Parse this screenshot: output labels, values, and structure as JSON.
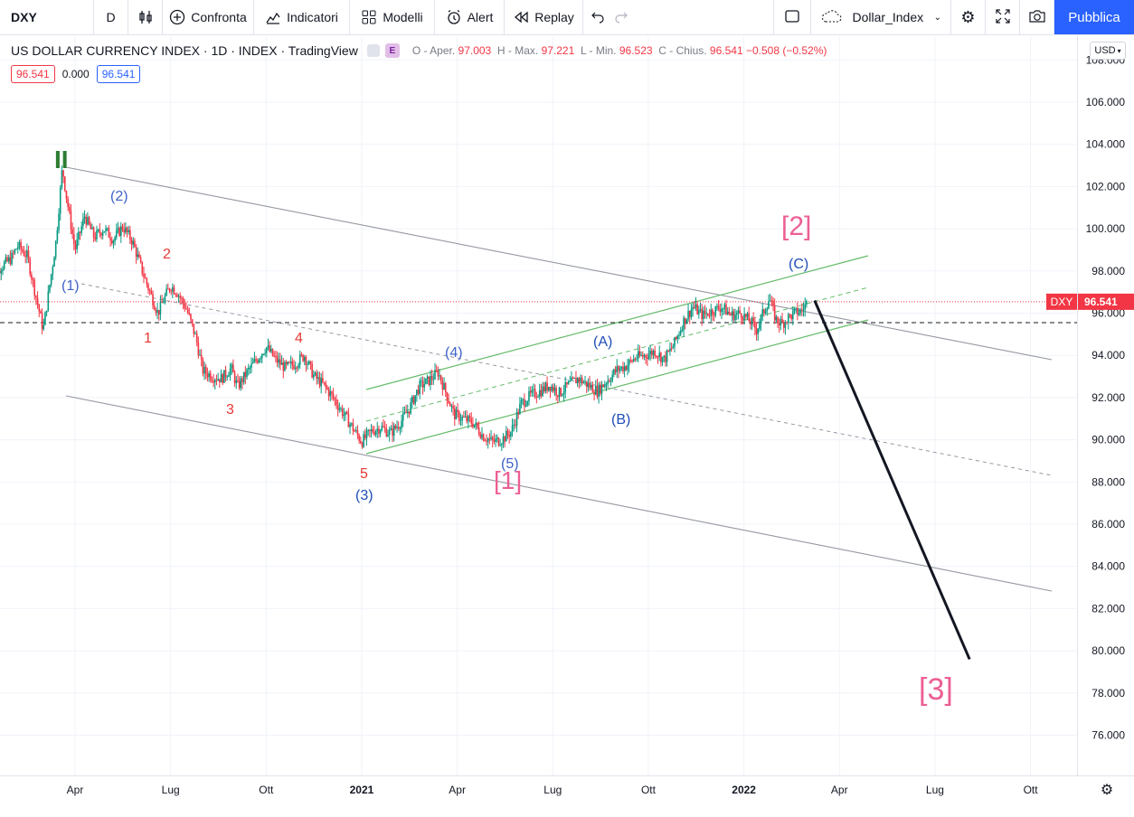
{
  "toolbar": {
    "symbol": "DXY",
    "interval": "D",
    "compare_label": "Confronta",
    "indicators_label": "Indicatori",
    "templates_label": "Modelli",
    "alert_label": "Alert",
    "replay_label": "Replay",
    "layout_name": "Dollar_Index",
    "publish_label": "Pubblica"
  },
  "legend": {
    "title": "US DOLLAR CURRENCY INDEX · 1D · INDEX · TradingView",
    "e_badge": "E",
    "open_label": "O - Aper.",
    "open": "97.003",
    "high_label": "H - Max.",
    "high": "97.221",
    "low_label": "L - Min.",
    "low": "96.523",
    "close_label": "C - Chius.",
    "close": "96.541",
    "change": "−0.508 (−0.52%)",
    "price_box_1": "96.541",
    "price_box_mid": "0.000",
    "price_box_2": "96.541"
  },
  "currency_selector": "USD",
  "colors": {
    "up": "#089981",
    "down": "#f23645",
    "wave_red": "#e53935",
    "wave_blue": "#1e4db7",
    "wave_pink": "#ec5f94",
    "wave_green": "#2e7d32",
    "channel_green": "#66bb6a",
    "channel_gray": "#9598a1",
    "accent": "#2962ff"
  },
  "chart_data": {
    "type": "line",
    "symbol": "DXY",
    "ylim": [
      74.5,
      108.5
    ],
    "y_ticks": [
      76,
      78,
      80,
      82,
      84,
      86,
      88,
      90,
      92,
      94,
      96,
      98,
      100,
      102,
      104,
      106,
      108
    ],
    "x_ticks": [
      "Apr",
      "Lug",
      "Ott",
      "2021",
      "Apr",
      "Lug",
      "Ott",
      "2022",
      "Apr",
      "Lug",
      "Ott"
    ],
    "x_tick_months": [
      3,
      6,
      9,
      12,
      15,
      18,
      21,
      24,
      27,
      30,
      33
    ],
    "x_range_months": [
      0.25,
      34.7
    ],
    "series": [
      {
        "values": [
          [
            0.3,
            97.6
          ],
          [
            0.6,
            98.1
          ],
          [
            1.0,
            98.6
          ],
          [
            1.2,
            99.2
          ],
          [
            1.5,
            98.7
          ],
          [
            1.8,
            96.6
          ],
          [
            2.0,
            95.2
          ],
          [
            2.2,
            97.3
          ],
          [
            2.4,
            99.4
          ],
          [
            2.6,
            102.9
          ],
          [
            2.75,
            101.3
          ],
          [
            3.0,
            99.0
          ],
          [
            3.3,
            100.6
          ],
          [
            3.6,
            99.6
          ],
          [
            3.9,
            100.0
          ],
          [
            4.2,
            99.5
          ],
          [
            4.5,
            100.1
          ],
          [
            4.8,
            99.4
          ],
          [
            5.0,
            98.5
          ],
          [
            5.2,
            97.6
          ],
          [
            5.4,
            96.8
          ],
          [
            5.6,
            96.0
          ],
          [
            5.8,
            96.7
          ],
          [
            6.0,
            97.3
          ],
          [
            6.2,
            97.0
          ],
          [
            6.5,
            96.2
          ],
          [
            6.8,
            94.8
          ],
          [
            7.0,
            93.3
          ],
          [
            7.3,
            93.0
          ],
          [
            7.6,
            92.9
          ],
          [
            7.9,
            93.4
          ],
          [
            8.1,
            92.5
          ],
          [
            8.4,
            93.2
          ],
          [
            8.7,
            93.8
          ],
          [
            9.0,
            94.4
          ],
          [
            9.3,
            93.8
          ],
          [
            9.6,
            93.4
          ],
          [
            9.9,
            93.6
          ],
          [
            10.2,
            94.0
          ],
          [
            10.5,
            93.0
          ],
          [
            10.8,
            92.6
          ],
          [
            11.1,
            92.0
          ],
          [
            11.4,
            91.3
          ],
          [
            11.7,
            90.6
          ],
          [
            12.0,
            89.9
          ],
          [
            12.3,
            90.4
          ],
          [
            12.6,
            90.6
          ],
          [
            12.9,
            90.3
          ],
          [
            13.2,
            90.8
          ],
          [
            13.5,
            91.5
          ],
          [
            13.8,
            92.5
          ],
          [
            14.1,
            92.8
          ],
          [
            14.4,
            93.2
          ],
          [
            14.6,
            92.4
          ],
          [
            14.9,
            91.2
          ],
          [
            15.2,
            91.0
          ],
          [
            15.5,
            90.8
          ],
          [
            15.8,
            90.2
          ],
          [
            16.1,
            89.9
          ],
          [
            16.4,
            90.0
          ],
          [
            16.7,
            90.4
          ],
          [
            17.0,
            91.7
          ],
          [
            17.3,
            92.1
          ],
          [
            17.6,
            92.3
          ],
          [
            17.9,
            92.6
          ],
          [
            18.2,
            92.2
          ],
          [
            18.5,
            92.6
          ],
          [
            18.8,
            92.9
          ],
          [
            19.1,
            92.6
          ],
          [
            19.4,
            92.3
          ],
          [
            19.7,
            92.8
          ],
          [
            20.0,
            93.3
          ],
          [
            20.3,
            93.5
          ],
          [
            20.6,
            93.9
          ],
          [
            20.9,
            94.0
          ],
          [
            21.2,
            94.2
          ],
          [
            21.5,
            93.8
          ],
          [
            21.8,
            94.5
          ],
          [
            22.1,
            95.6
          ],
          [
            22.4,
            96.3
          ],
          [
            22.7,
            95.9
          ],
          [
            23.0,
            96.1
          ],
          [
            23.3,
            96.3
          ],
          [
            23.6,
            95.9
          ],
          [
            23.9,
            96.0
          ],
          [
            24.2,
            95.6
          ],
          [
            24.4,
            95.2
          ],
          [
            24.6,
            96.0
          ],
          [
            24.8,
            96.7
          ],
          [
            25.0,
            95.7
          ],
          [
            25.2,
            95.5
          ],
          [
            25.4,
            95.8
          ],
          [
            25.6,
            96.0
          ],
          [
            25.8,
            96.1
          ],
          [
            26.0,
            96.54
          ]
        ]
      }
    ],
    "annotations": {
      "red": [
        "1",
        "2",
        "3",
        "4",
        "5"
      ],
      "blue": [
        "(1)",
        "(2)",
        "(3)",
        "(4)",
        "(5)",
        "(A)",
        "(B)",
        "(C)"
      ],
      "pink": [
        "[1]",
        "[2]",
        "[3]"
      ],
      "green": [
        "II"
      ]
    },
    "projection": [
      [
        26.05,
        96.6
      ],
      [
        31.0,
        79.6
      ]
    ],
    "last_price_label": "DXY",
    "last_price": "96.541",
    "grid": true
  }
}
